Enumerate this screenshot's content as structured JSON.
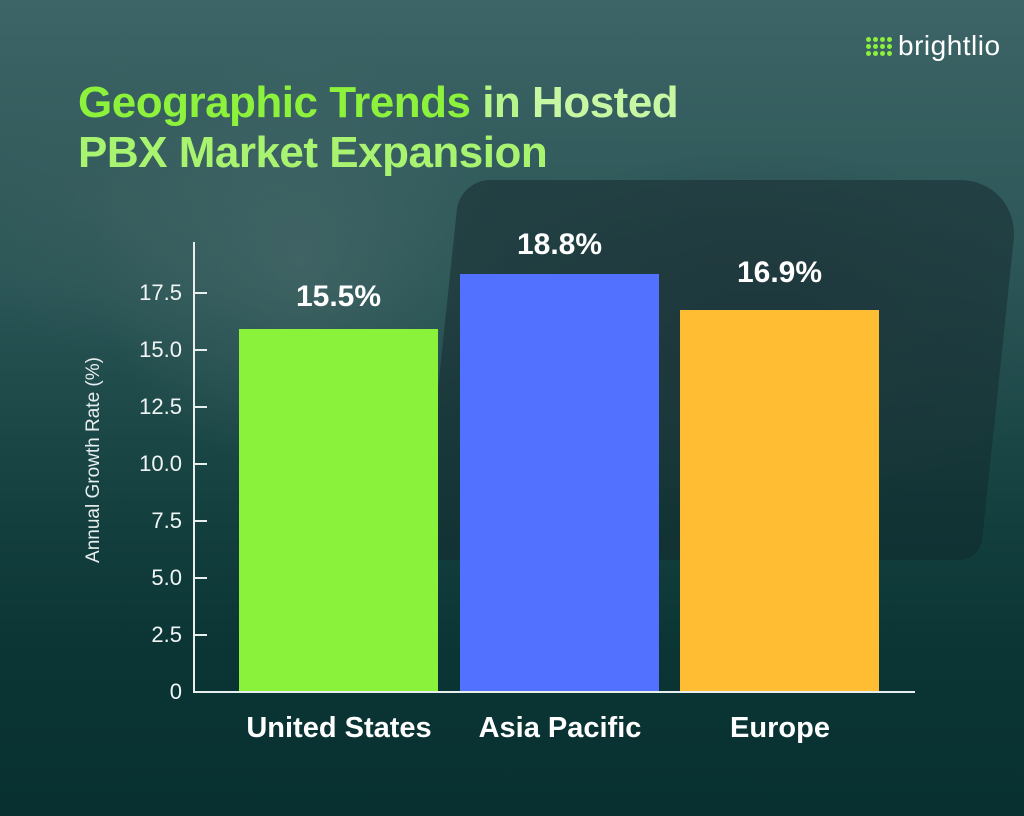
{
  "brand": {
    "name": "brightlio",
    "icon": "dot-grid-logo-icon"
  },
  "title": {
    "part1": "Geographic Trends",
    "part2": " in ",
    "part3": "Hosted",
    "line2": "PBX Market Expansion"
  },
  "colors": {
    "title_green": "#8df23c",
    "bar_us": "#8af23a",
    "bar_ap": "#5271ff",
    "bar_eu": "#ffbd33",
    "background": "#0f3a3a"
  },
  "chart_data": {
    "type": "bar",
    "title": "Geographic Trends in Hosted PBX Market Expansion",
    "xlabel": "",
    "ylabel": "Annual Growth Rate (%)",
    "categories": [
      "United States",
      "Asia Pacific",
      "Europe"
    ],
    "values": [
      15.5,
      18.8,
      16.9
    ],
    "value_labels": [
      "15.5%",
      "18.8%",
      "16.9%"
    ],
    "colors": [
      "#8af23a",
      "#5271ff",
      "#ffbd33"
    ],
    "ylim": [
      0,
      19.5
    ],
    "yticks": [
      "0",
      "2.5",
      "5.0",
      "7.5",
      "10.0",
      "12.5",
      "15.0",
      "17.5"
    ],
    "grid": false,
    "legend": null
  }
}
